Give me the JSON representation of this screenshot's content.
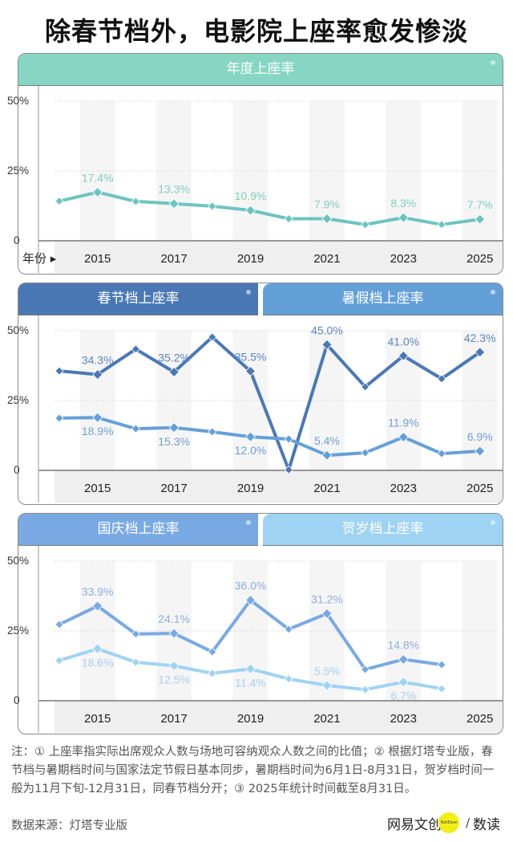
{
  "title": "除春节档外，电影院上座率愈发惨淡",
  "panels": [
    {
      "tabs": [
        {
          "label": "年度上座率",
          "color": "#86d6c3"
        }
      ],
      "x_axis_prefix": "年份 ▸"
    },
    {
      "tabs": [
        {
          "label": "春节档上座率",
          "color": "#4a78b5"
        },
        {
          "label": "暑假档上座率",
          "color": "#64a0d8"
        }
      ],
      "x_axis_prefix": ""
    },
    {
      "tabs": [
        {
          "label": "国庆档上座率",
          "color": "#79a9e3"
        },
        {
          "label": "贺岁档上座率",
          "color": "#9fd3f3"
        }
      ],
      "x_axis_prefix": ""
    }
  ],
  "chart_data": [
    {
      "type": "line",
      "title": "年度上座率",
      "x": [
        2014,
        2015,
        2016,
        2017,
        2018,
        2019,
        2020,
        2021,
        2022,
        2023,
        2024,
        2025
      ],
      "x_tick_labels": [
        "2015",
        "2017",
        "2019",
        "2021",
        "2023",
        "2025"
      ],
      "y_tick_labels": [
        "0",
        "25%",
        "50%"
      ],
      "ylim": [
        0,
        50
      ],
      "xlabel": "年份",
      "grid": true,
      "series": [
        {
          "name": "年度上座率",
          "color": "#6cc4c0",
          "label_color": "#7fd1b8",
          "values": [
            14.2,
            17.4,
            14.1,
            13.3,
            12.4,
            10.9,
            7.9,
            7.9,
            5.8,
            8.3,
            5.8,
            7.7
          ],
          "labels": {
            "2015": "17.4%",
            "2017": "13.3%",
            "2019": "10.9%",
            "2021": "7.9%",
            "2023": "8.3%",
            "2025": "7.7%"
          },
          "label_position": "above"
        }
      ]
    },
    {
      "type": "line",
      "title": "春节档 / 暑假档上座率",
      "x": [
        2014,
        2015,
        2016,
        2017,
        2018,
        2019,
        2020,
        2021,
        2022,
        2023,
        2024,
        2025
      ],
      "x_tick_labels": [
        "2015",
        "2017",
        "2019",
        "2021",
        "2023",
        "2025"
      ],
      "y_tick_labels": [
        "0",
        "25%",
        "50%"
      ],
      "ylim": [
        0,
        50
      ],
      "grid": true,
      "series": [
        {
          "name": "春节档上座率",
          "color": "#4a78b5",
          "label_color": "#5b86bf",
          "values": [
            35.6,
            34.3,
            43.4,
            35.2,
            47.7,
            35.5,
            0.2,
            45.0,
            29.9,
            41.0,
            32.8,
            42.3
          ],
          "labels": {
            "2015": "34.3%",
            "2017": "35.2%",
            "2019": "35.5%",
            "2021": "45.0%",
            "2023": "41.0%",
            "2025": "42.3%"
          },
          "label_position": "above"
        },
        {
          "name": "暑假档上座率",
          "color": "#64a0d8",
          "label_color": "#6f9fd0",
          "values": [
            18.7,
            18.9,
            14.9,
            15.3,
            13.8,
            12.0,
            11.2,
            5.4,
            6.3,
            11.9,
            6.0,
            6.9
          ],
          "labels": {
            "2015": "18.9%",
            "2017": "15.3%",
            "2019": "12.0%",
            "2021": "5.4%",
            "2023": "11.9%",
            "2025": "6.9%"
          },
          "label_position": "mixed"
        }
      ]
    },
    {
      "type": "line",
      "title": "国庆档 / 贺岁档上座率",
      "x": [
        2014,
        2015,
        2016,
        2017,
        2018,
        2019,
        2020,
        2021,
        2022,
        2023,
        2024,
        2025
      ],
      "x_tick_labels": [
        "2015",
        "2017",
        "2019",
        "2021",
        "2023",
        "2025"
      ],
      "y_tick_labels": [
        "0",
        "25%",
        "50%"
      ],
      "ylim": [
        0,
        50
      ],
      "grid": true,
      "series": [
        {
          "name": "国庆档上座率",
          "color": "#79a9e3",
          "label_color": "#8eaedb",
          "values": [
            27.3,
            33.9,
            23.9,
            24.1,
            17.5,
            36.0,
            25.6,
            31.2,
            11.2,
            14.8,
            12.9,
            null
          ],
          "labels": {
            "2015": "33.9%",
            "2017": "24.1%",
            "2019": "36.0%",
            "2021": "31.2%",
            "2023": "14.8%"
          },
          "label_position": "above"
        },
        {
          "name": "贺岁档上座率",
          "color": "#9fd3f3",
          "label_color": "#a9cdef",
          "values": [
            14.4,
            18.6,
            13.8,
            12.5,
            9.8,
            11.4,
            7.8,
            5.5,
            4.0,
            6.7,
            4.3,
            null
          ],
          "labels": {
            "2015": "18.6%",
            "2017": "12.5%",
            "2019": "11.4%",
            "2021": "5.5%",
            "2023": "6.7%"
          },
          "label_position": "mixed"
        }
      ]
    }
  ],
  "notes": "注：① 上座率指实际出席观众人数与场地可容纳观众人数之间的比值；② 根据灯塔专业版，春节档与暑期档时间与国家法定节假日基本同步，暑期档时间为6月1日-8月31日，贺岁档时间一般为11月下旬-12月31日，同春节档分开；③ 2025年统计时间截至8月31日。",
  "source": "数据来源：灯塔专业版",
  "logo": {
    "brand": "网易文创",
    "badge": "NetEase",
    "slash": "/",
    "column": "数读"
  }
}
